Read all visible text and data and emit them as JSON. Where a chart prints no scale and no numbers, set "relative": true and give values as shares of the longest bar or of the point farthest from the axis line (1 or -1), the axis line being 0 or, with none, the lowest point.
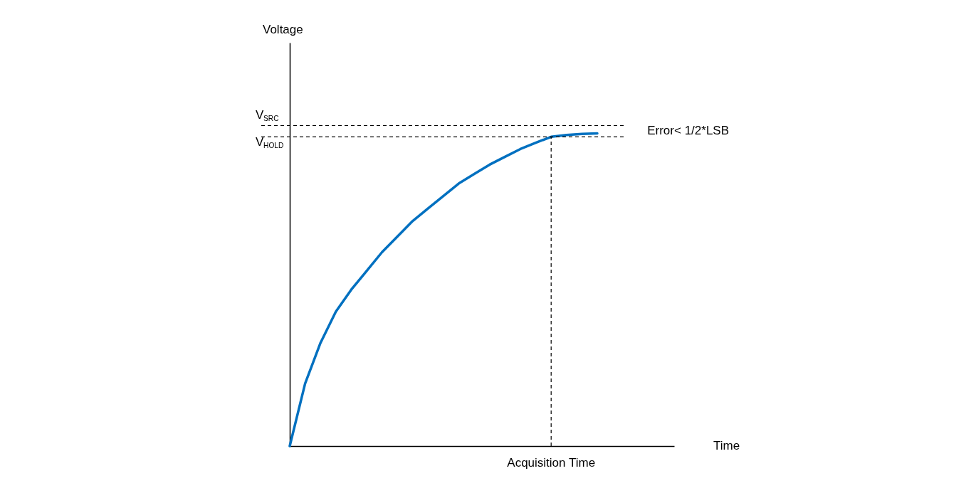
{
  "chart_data": {
    "type": "line",
    "relative": true,
    "grid": false,
    "categories": [
      null,
      null,
      null,
      null,
      null,
      null,
      null,
      null,
      null,
      null,
      null,
      null,
      null,
      null,
      null,
      null,
      null,
      null,
      null,
      null,
      null
    ],
    "series": [
      {
        "color": "#0070c0",
        "values": [
          0,
          0.2,
          0.33,
          0.43,
          0.5,
          0.56,
          0.62,
          0.67,
          0.72,
          0.76,
          0.8,
          0.84,
          0.87,
          0.9,
          0.925,
          0.95,
          0.97,
          0.989,
          0.995,
          0.998,
          1.0
        ]
      }
    ],
    "ref_lines": [
      {
        "axis": "y",
        "value": 1.025,
        "label": "V$_{SRC}$",
        "line_style": "dashed",
        "color": "#000000"
      },
      {
        "axis": "y",
        "value": 0.989,
        "label": "V$_{HOLD}$",
        "line_style": "dashed",
        "color": "#000000"
      }
    ],
    "annotations": [
      "Voltage",
      "Time",
      {
        "text": "Acquisition Time",
        "y": 0.989
      },
      "Error< 1/2*LSB"
    ]
  }
}
